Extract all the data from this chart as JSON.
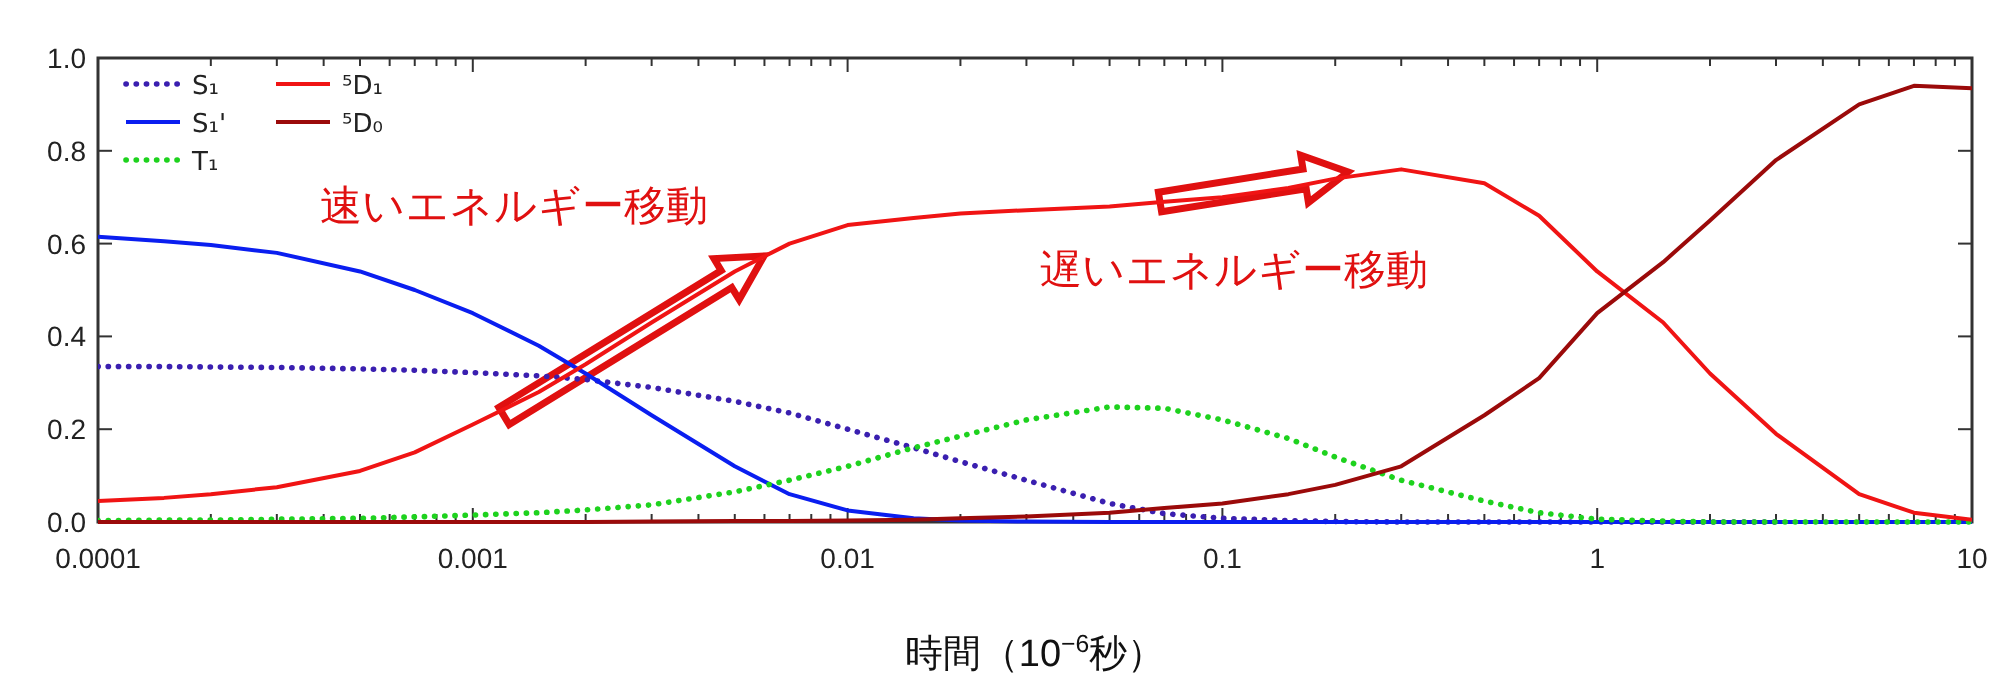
{
  "chart_data": {
    "type": "line",
    "xlabel": "時間（10$^{−6}$秒）",
    "log": "x",
    "grid": false,
    "legend": "top left",
    "marker": "none",
    "x": [
      0.0001,
      0.00015,
      0.0002,
      0.0003,
      0.0005,
      0.0007,
      0.001,
      0.0015,
      0.002,
      0.003,
      0.005,
      0.007,
      0.01,
      0.015,
      0.02,
      0.03,
      0.05,
      0.07,
      0.1,
      0.15,
      0.2,
      0.3,
      0.5,
      0.7,
      1,
      1.5,
      2,
      3,
      5,
      7,
      10
    ],
    "xlim": [
      0.0001,
      10
    ],
    "xticks": [
      0.0001,
      0.001,
      0.01,
      0.1,
      1,
      10
    ],
    "ylim": [
      0,
      1
    ],
    "yticks": [
      {
        "value": 0,
        "label": "0.0"
      },
      {
        "value": 0.2,
        "label": "0.2"
      },
      {
        "value": 0.4,
        "label": "0.4"
      },
      {
        "value": 0.6,
        "label": "0.6"
      },
      {
        "value": 0.8,
        "label": "0.8"
      },
      {
        "value": 1,
        "label": "1.0"
      }
    ],
    "series": [
      {
        "name": "S₁",
        "color": "#3a1fb0",
        "line_style": "dotted",
        "values": [
          0.335,
          0.335,
          0.334,
          0.333,
          0.33,
          0.327,
          0.322,
          0.315,
          0.307,
          0.29,
          0.26,
          0.235,
          0.2,
          0.16,
          0.13,
          0.09,
          0.04,
          0.018,
          0.008,
          0.003,
          0.001,
          0,
          0,
          0,
          0,
          0,
          0,
          0,
          null,
          null,
          null
        ]
      },
      {
        "name": "S₁'",
        "color": "#0a1ef0",
        "line_style": "solid",
        "values": [
          0.615,
          0.605,
          0.597,
          0.58,
          0.54,
          0.5,
          0.45,
          0.38,
          0.32,
          0.23,
          0.12,
          0.06,
          0.025,
          0.008,
          0.003,
          0.001,
          0,
          0,
          0,
          0,
          0,
          0,
          0,
          0,
          0,
          0,
          0,
          0,
          0,
          0,
          0
        ]
      },
      {
        "name": "T₁",
        "color": "#1ed21e",
        "line_style": "dotted",
        "values": [
          0.003,
          0.004,
          0.004,
          0.006,
          0.008,
          0.011,
          0.015,
          0.02,
          0.026,
          0.037,
          0.065,
          0.09,
          0.12,
          0.16,
          0.185,
          0.22,
          0.248,
          0.245,
          0.22,
          0.18,
          0.14,
          0.09,
          0.045,
          0.02,
          0.006,
          0.002,
          0,
          0,
          0,
          0,
          0
        ]
      },
      {
        "name": "⁵D₁",
        "color": "#f01414",
        "line_style": "solid",
        "values": [
          0.045,
          0.052,
          0.06,
          0.075,
          0.11,
          0.15,
          0.21,
          0.28,
          0.34,
          0.43,
          0.54,
          0.6,
          0.64,
          0.655,
          0.665,
          0.672,
          0.68,
          0.69,
          0.7,
          0.72,
          0.74,
          0.76,
          0.73,
          0.66,
          0.54,
          0.43,
          0.32,
          0.19,
          0.06,
          0.02,
          0.005
        ]
      },
      {
        "name": "⁵D₀",
        "color": "#9b0a0a",
        "line_style": "solid",
        "values": [
          0,
          0,
          0,
          0,
          0,
          0,
          0,
          0,
          0,
          0.001,
          0.002,
          0.002,
          0.003,
          0.005,
          0.008,
          0.012,
          0.02,
          0.03,
          0.04,
          0.06,
          0.08,
          0.12,
          0.23,
          0.31,
          0.45,
          0.56,
          0.65,
          0.78,
          0.9,
          0.94,
          0.935
        ]
      }
    ],
    "annotations": [
      "速いエネルギー移動",
      "遅いエネルギー移動"
    ]
  }
}
